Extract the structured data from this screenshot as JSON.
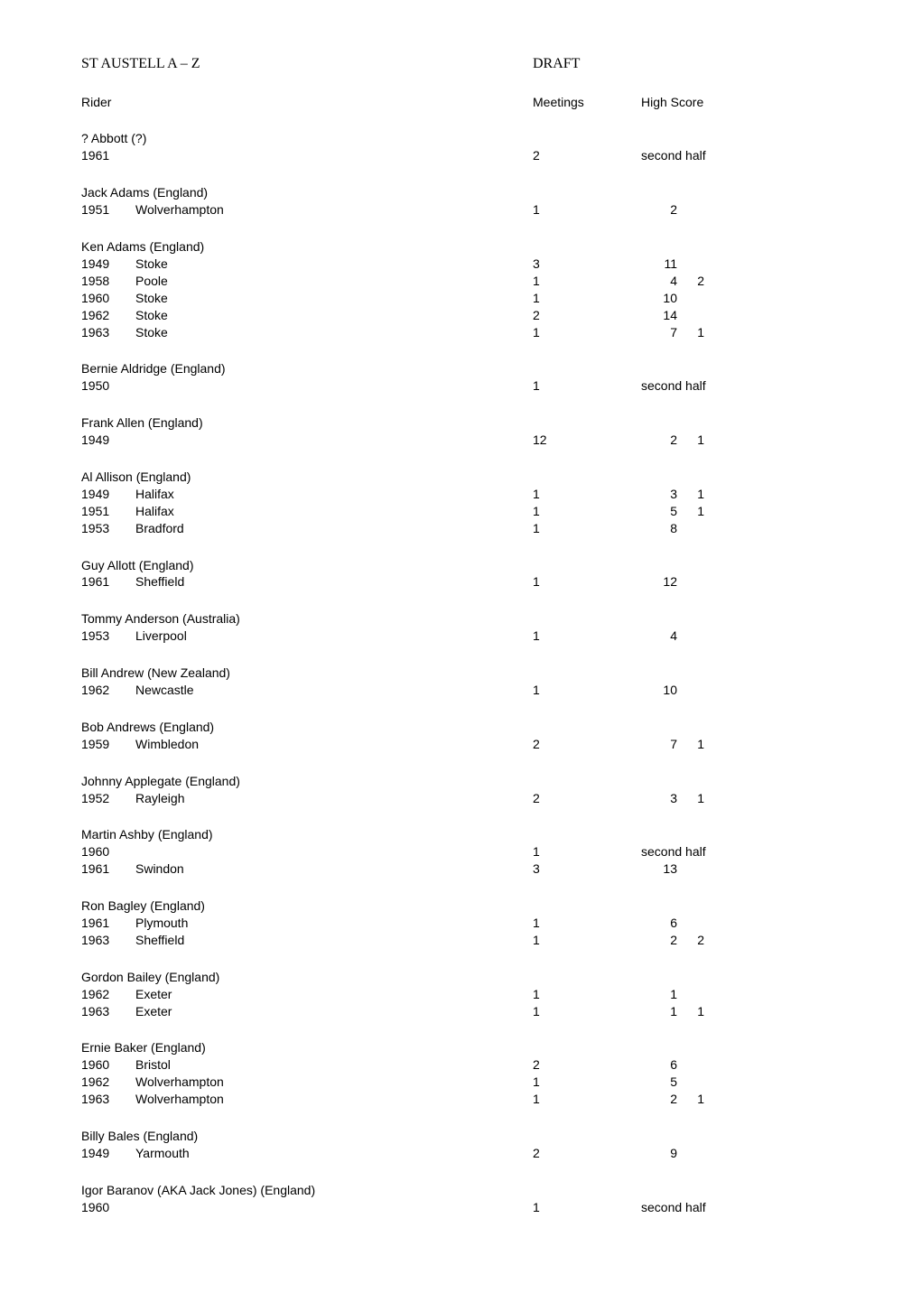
{
  "header": {
    "title": "ST AUSTELL  A – Z",
    "draft": "DRAFT"
  },
  "columns": {
    "rider": "Rider",
    "meetings": "Meetings",
    "highscore": "High Score"
  },
  "entries": [
    {
      "title": "? Abbott  (?)",
      "rows": [
        {
          "year": "1961",
          "club": "",
          "meetings": "2",
          "hs_text": "second half"
        }
      ]
    },
    {
      "title": "Jack Adams  (England)",
      "rows": [
        {
          "year": "1951",
          "club": "Wolverhampton",
          "meetings": "1",
          "hs": "2"
        }
      ]
    },
    {
      "title": "Ken Adams  (England)",
      "rows": [
        {
          "year": "1949",
          "club": "Stoke",
          "meetings": "3",
          "hs": "11"
        },
        {
          "year": "1958",
          "club": "Poole",
          "meetings": "1",
          "hs": "4",
          "hs2": "2"
        },
        {
          "year": "1960",
          "club": "Stoke",
          "meetings": "1",
          "hs": "10"
        },
        {
          "year": "1962",
          "club": "Stoke",
          "meetings": "2",
          "hs": "14"
        },
        {
          "year": "1963",
          "club": "Stoke",
          "meetings": "1",
          "hs": "7",
          "hs2": "1"
        }
      ]
    },
    {
      "title": "Bernie Aldridge  (England)",
      "rows": [
        {
          "year": "1950",
          "club": "",
          "meetings": "1",
          "hs_text": "second half"
        }
      ]
    },
    {
      "title": "Frank Allen  (England)",
      "rows": [
        {
          "year": "1949",
          "club": "",
          "meetings": "12",
          "hs": "2",
          "hs2": "1"
        }
      ]
    },
    {
      "title": "Al Allison  (England)",
      "rows": [
        {
          "year": "1949",
          "club": "Halifax",
          "meetings": "1",
          "hs": "3",
          "hs2": "1"
        },
        {
          "year": "1951",
          "club": "Halifax",
          "meetings": "1",
          "hs": "5",
          "hs2": "1"
        },
        {
          "year": "1953",
          "club": "Bradford",
          "meetings": "1",
          "hs": "8"
        }
      ]
    },
    {
      "title": "Guy Allott  (England)",
      "rows": [
        {
          "year": "1961",
          "club": "Sheffield",
          "meetings": "1",
          "hs": "12"
        }
      ]
    },
    {
      "title": "Tommy Anderson  (Australia)",
      "rows": [
        {
          "year": "1953",
          "club": "Liverpool",
          "meetings": "1",
          "hs": "4"
        }
      ]
    },
    {
      "title": "Bill Andrew  (New Zealand)",
      "rows": [
        {
          "year": "1962",
          "club": "Newcastle",
          "meetings": "1",
          "hs": "10"
        }
      ]
    },
    {
      "title": "Bob Andrews  (England)",
      "rows": [
        {
          "year": "1959",
          "club": "Wimbledon",
          "meetings": "2",
          "hs": "7",
          "hs2": "1"
        }
      ]
    },
    {
      "title": "Johnny Applegate  (England)",
      "rows": [
        {
          "year": "1952",
          "club": "Rayleigh",
          "meetings": "2",
          "hs": "3",
          "hs2": "1"
        }
      ]
    },
    {
      "title": "Martin Ashby  (England)",
      "rows": [
        {
          "year": "1960",
          "club": "",
          "meetings": "1",
          "hs_text": "second half"
        },
        {
          "year": "1961",
          "club": "Swindon",
          "meetings": "3",
          "hs": "13"
        }
      ]
    },
    {
      "title": "Ron Bagley  (England)",
      "rows": [
        {
          "year": "1961",
          "club": "Plymouth",
          "meetings": "1",
          "hs": "6"
        },
        {
          "year": "1963",
          "club": "Sheffield",
          "meetings": "1",
          "hs": "2",
          "hs2": "2"
        }
      ]
    },
    {
      "title": "Gordon Bailey  (England)",
      "rows": [
        {
          "year": "1962",
          "club": "Exeter",
          "meetings": "1",
          "hs": "1"
        },
        {
          "year": "1963",
          "club": "Exeter",
          "meetings": "1",
          "hs": "1",
          "hs2": "1"
        }
      ]
    },
    {
      "title": "Ernie Baker  (England)",
      "rows": [
        {
          "year": "1960",
          "club": "Bristol",
          "meetings": "2",
          "hs": "6"
        },
        {
          "year": "1962",
          "club": "Wolverhampton",
          "meetings": "1",
          "hs": "5"
        },
        {
          "year": "1963",
          "club": "Wolverhampton",
          "meetings": "1",
          "hs": "2",
          "hs2": "1"
        }
      ]
    },
    {
      "title": "Billy Bales  (England)",
      "rows": [
        {
          "year": "1949",
          "club": "Yarmouth",
          "meetings": "2",
          "hs": "9"
        }
      ]
    },
    {
      "title": "Igor Baranov (AKA Jack Jones) (England)",
      "rows": [
        {
          "year": "1960",
          "club": "",
          "meetings": "1",
          "hs_text": "second half"
        }
      ]
    }
  ]
}
